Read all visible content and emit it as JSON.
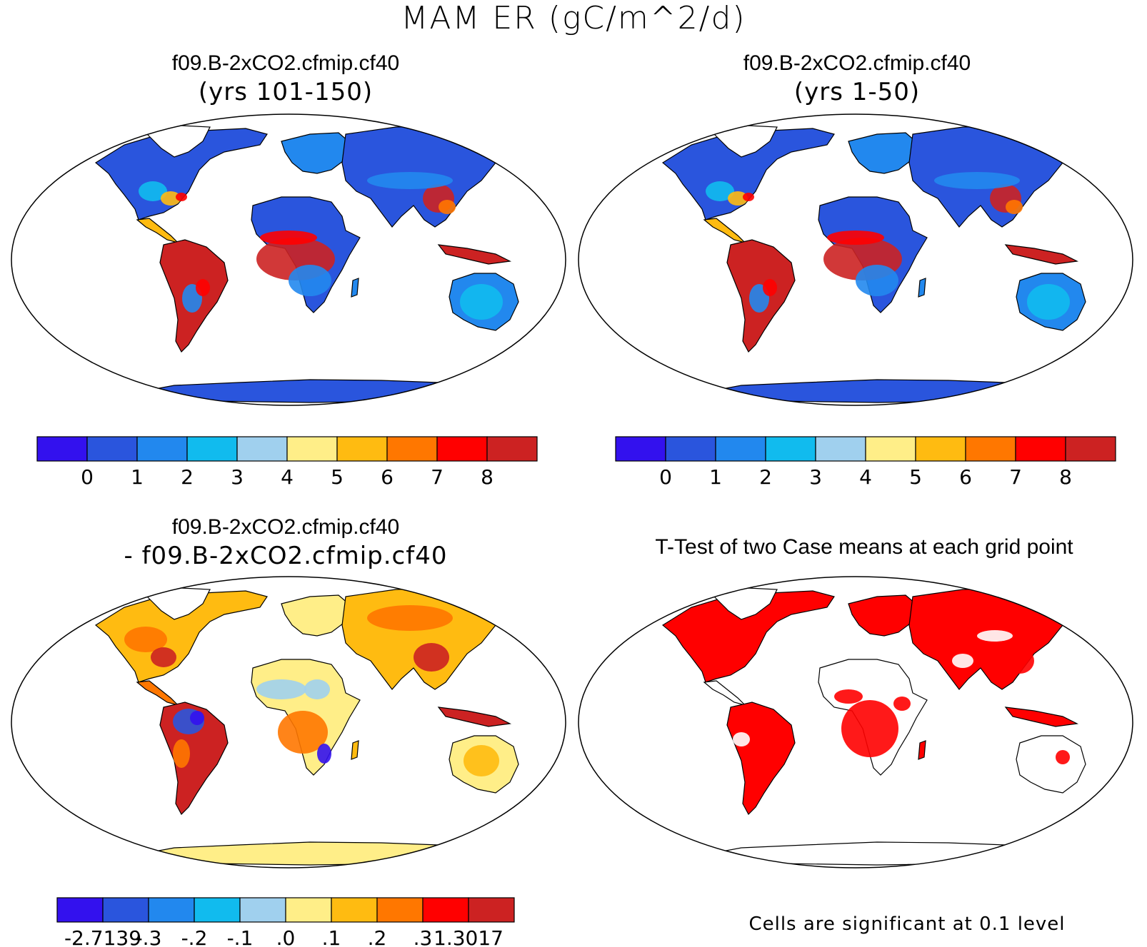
{
  "title": "MAM ER (gC/m^2/d)",
  "panels": [
    {
      "id": "top-left",
      "title": "f09.B-2xCO2.cfmip.cf40",
      "subtitle": "(yrs 101-150)",
      "colorbar": {
        "colors": [
          "#3311ee",
          "#2a55dd",
          "#2288ee",
          "#11bbee",
          "#a0d0ee",
          "#ffee88",
          "#ffbb11",
          "#ff7700",
          "#ff0000",
          "#cc2222"
        ],
        "labels": [
          "0",
          "1",
          "2",
          "3",
          "4",
          "5",
          "6",
          "7",
          "8"
        ]
      }
    },
    {
      "id": "top-right",
      "title": "f09.B-2xCO2.cfmip.cf40",
      "subtitle": "(yrs 1-50)",
      "colorbar": {
        "colors": [
          "#3311ee",
          "#2a55dd",
          "#2288ee",
          "#11bbee",
          "#a0d0ee",
          "#ffee88",
          "#ffbb11",
          "#ff7700",
          "#ff0000",
          "#cc2222"
        ],
        "labels": [
          "0",
          "1",
          "2",
          "3",
          "4",
          "5",
          "6",
          "7",
          "8"
        ]
      }
    },
    {
      "id": "bottom-left",
      "title": "f09.B-2xCO2.cfmip.cf40",
      "subtitle": "- f09.B-2xCO2.cfmip.cf40",
      "colorbar": {
        "colors": [
          "#3311ee",
          "#2a55dd",
          "#2288ee",
          "#11bbee",
          "#a0d0ee",
          "#ffee88",
          "#ffbb11",
          "#ff7700",
          "#ff0000",
          "#cc2222"
        ],
        "labels": [
          "-2.7139",
          "-.3",
          "-.2",
          "-.1",
          ".0",
          ".1",
          ".2",
          ".3",
          "1.3017"
        ]
      }
    },
    {
      "id": "bottom-right",
      "title": "T-Test of two Case means at each grid point",
      "subtitle": "",
      "footnote": "Cells are significant at 0.1 level"
    }
  ]
}
